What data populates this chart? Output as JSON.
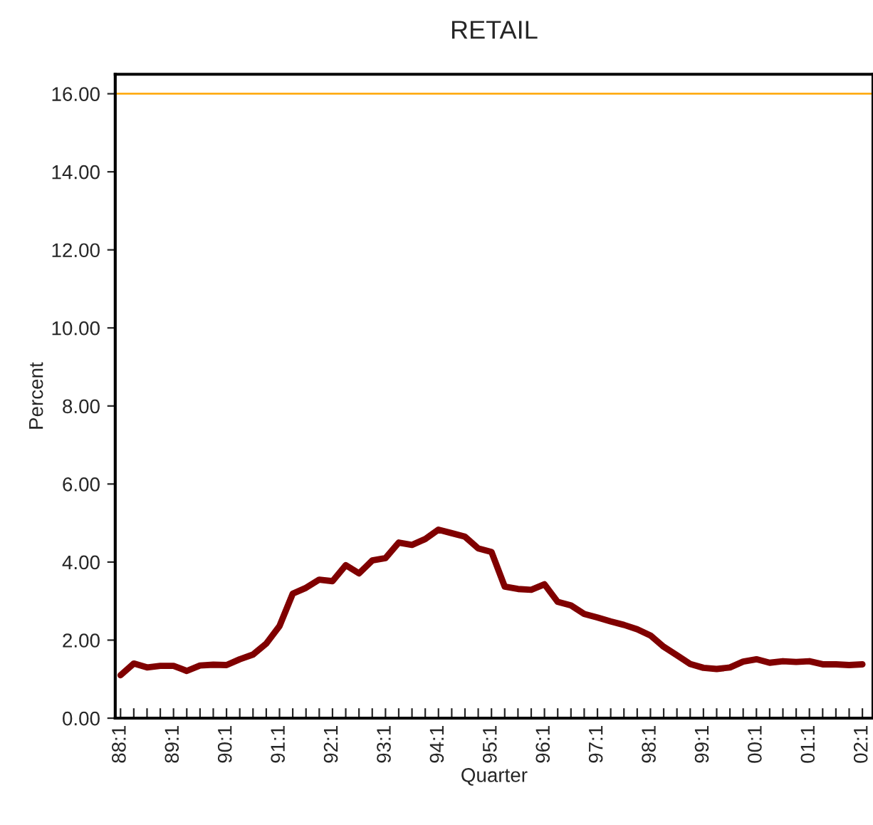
{
  "chart_data": {
    "type": "line",
    "title": "RETAIL",
    "xlabel": "Quarter",
    "ylabel": "Percent",
    "categories": [
      "88:1",
      null,
      null,
      null,
      "89:1",
      null,
      null,
      null,
      "90:1",
      null,
      null,
      null,
      "91:1",
      null,
      null,
      null,
      "92:1",
      null,
      null,
      null,
      "93:1",
      null,
      null,
      null,
      "94:1",
      null,
      null,
      null,
      "95:1",
      null,
      null,
      null,
      "96:1",
      null,
      null,
      null,
      "97:1",
      null,
      null,
      null,
      "98:1",
      null,
      null,
      null,
      "99:1",
      null,
      null,
      null,
      "00:1",
      null,
      null,
      null,
      "01:1",
      null,
      null,
      null,
      "02:1"
    ],
    "series": [
      {
        "color": "#800000",
        "values": [
          1.1,
          1.4,
          1.3,
          1.34,
          1.34,
          1.21,
          1.35,
          1.37,
          1.36,
          1.51,
          1.63,
          1.91,
          2.36,
          3.19,
          3.34,
          3.55,
          3.51,
          3.92,
          3.71,
          4.04,
          4.1,
          4.5,
          4.44,
          4.59,
          4.83,
          4.74,
          4.65,
          4.35,
          4.26,
          3.37,
          3.31,
          3.29,
          3.43,
          2.98,
          2.89,
          2.67,
          2.58,
          2.48,
          2.39,
          2.28,
          2.12,
          1.83,
          1.61,
          1.39,
          1.29,
          1.26,
          1.3,
          1.45,
          1.51,
          1.42,
          1.46,
          1.44,
          1.46,
          1.38,
          1.38,
          1.36,
          1.38
        ]
      }
    ],
    "ylim": [
      0,
      16.5
    ],
    "yticks": [
      {
        "value": 0,
        "label": "0.00"
      },
      {
        "value": 2,
        "label": "2.00"
      },
      {
        "value": 4,
        "label": "4.00"
      },
      {
        "value": 6,
        "label": "6.00"
      },
      {
        "value": 8,
        "label": "8.00"
      },
      {
        "value": 10,
        "label": "10.00"
      },
      {
        "value": 12,
        "label": "12.00"
      },
      {
        "value": 14,
        "label": "14.00"
      },
      {
        "value": 16,
        "label": "16.00"
      }
    ],
    "ref_lines": [
      {
        "axis": "y",
        "value": 16,
        "color": "#ffa500"
      }
    ],
    "grid": false,
    "marker": "none",
    "line_style": "solid"
  }
}
